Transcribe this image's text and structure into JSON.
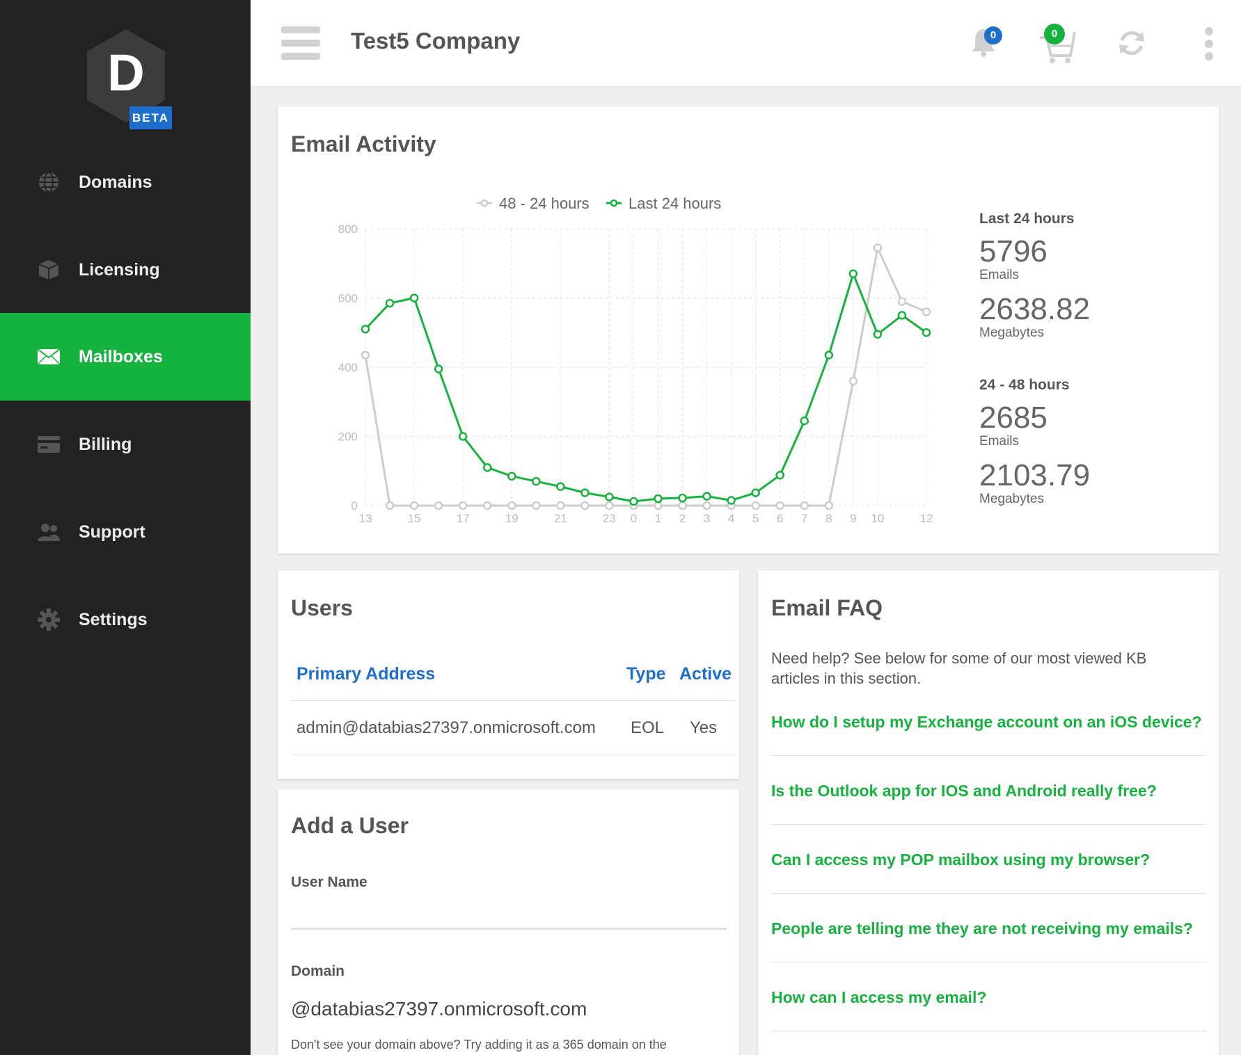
{
  "sidebar": {
    "logo_letter": "D",
    "beta_label": "BETA",
    "items": [
      {
        "label": "Domains",
        "icon": "globe-icon"
      },
      {
        "label": "Licensing",
        "icon": "box-icon"
      },
      {
        "label": "Mailboxes",
        "icon": "envelope-icon",
        "active": true
      },
      {
        "label": "Billing",
        "icon": "credit-card-icon"
      },
      {
        "label": "Support",
        "icon": "users-icon"
      },
      {
        "label": "Settings",
        "icon": "gear-icon"
      }
    ]
  },
  "header": {
    "company": "Test5 Company",
    "notifications_count": "0",
    "cart_count": "0"
  },
  "activity": {
    "title": "Email Activity",
    "last24": {
      "heading": "Last 24 hours",
      "emails": "5796",
      "emails_unit": "Emails",
      "mb": "2638.82",
      "mb_unit": "Megabytes"
    },
    "prev24": {
      "heading": "24 - 48 hours",
      "emails": "2685",
      "emails_unit": "Emails",
      "mb": "2103.79",
      "mb_unit": "Megabytes"
    }
  },
  "chart_data": {
    "type": "line",
    "x": [
      "13",
      "14",
      "15",
      "16",
      "17",
      "18",
      "19",
      "20",
      "21",
      "22",
      "23",
      "0",
      "1",
      "2",
      "3",
      "4",
      "5",
      "6",
      "7",
      "8",
      "9",
      "10",
      "11",
      "12"
    ],
    "x_tick_labels": [
      "13",
      "15",
      "17",
      "19",
      "21",
      "23",
      "0",
      "1",
      "2",
      "3",
      "4",
      "5",
      "6",
      "7",
      "8",
      "9",
      "10",
      "12"
    ],
    "ylim": [
      0,
      800
    ],
    "y_ticks": [
      0,
      200,
      400,
      600,
      800
    ],
    "grid": true,
    "legend_position": "top-center",
    "series": [
      {
        "name": "48 - 24 hours",
        "color": "#cccccc",
        "values": [
          435,
          0,
          0,
          0,
          0,
          0,
          0,
          0,
          0,
          0,
          0,
          0,
          0,
          0,
          0,
          0,
          0,
          0,
          0,
          0,
          360,
          745,
          590,
          560
        ]
      },
      {
        "name": "Last 24 hours",
        "color": "#15b33d",
        "values": [
          510,
          585,
          600,
          395,
          200,
          110,
          85,
          70,
          55,
          37,
          25,
          12,
          20,
          22,
          27,
          15,
          37,
          88,
          245,
          435,
          670,
          495,
          550,
          500
        ]
      }
    ]
  },
  "users": {
    "title": "Users",
    "columns": [
      "Primary Address",
      "Type",
      "Active"
    ],
    "rows": [
      {
        "address": "admin@databias27397.onmicrosoft.com",
        "type": "EOL",
        "active": "Yes"
      }
    ]
  },
  "add_user": {
    "title": "Add a User",
    "username_label": "User Name",
    "domain_label": "Domain",
    "domain_value": "@databias27397.onmicrosoft.com",
    "hint": "Don't see your domain above? Try adding it as a 365 domain on the"
  },
  "faq": {
    "title": "Email FAQ",
    "intro": "Need help? See below for some of our most viewed KB articles in this section.",
    "links": [
      "How do I setup my Exchange account on an iOS device?",
      "Is the Outlook app for IOS and Android really free?",
      "Can I access my POP mailbox using my browser?",
      "People are telling me they are not receiving my emails?",
      "How can I access my email?"
    ]
  }
}
